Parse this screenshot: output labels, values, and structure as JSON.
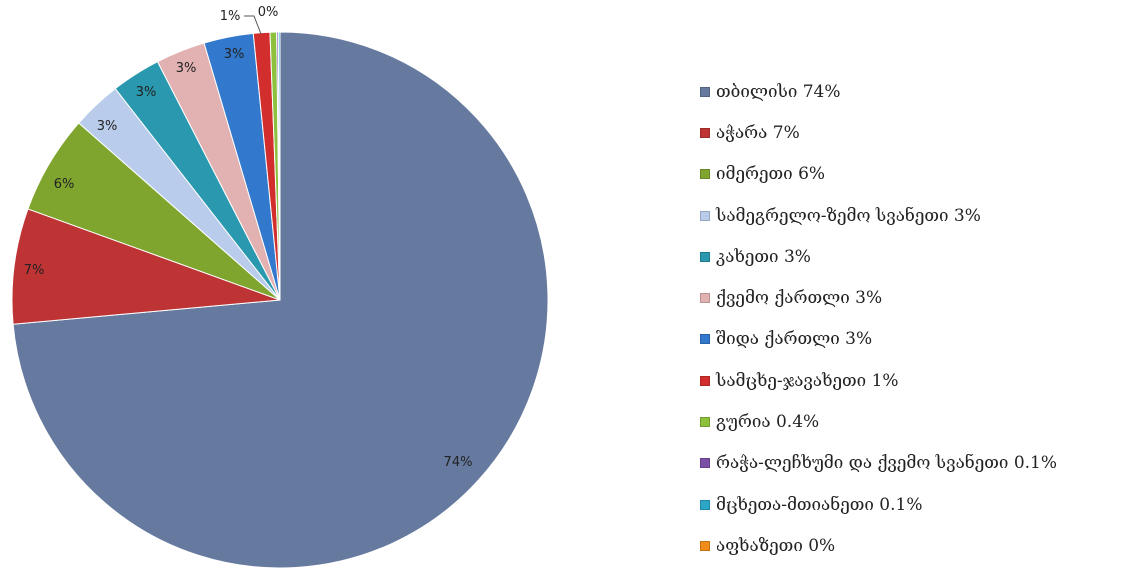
{
  "chart_data": {
    "type": "pie",
    "title": "",
    "slices": [
      {
        "label": "თბილისი",
        "legend": "თბილისი 74%",
        "value": 74,
        "data_label": "74%",
        "color": "#667A9F"
      },
      {
        "label": "აჭარა",
        "legend": "აჭარა 7%",
        "value": 7,
        "data_label": "7%",
        "color": "#BE3434"
      },
      {
        "label": "იმერეთი",
        "legend": "იმერეთი 6%",
        "value": 6,
        "data_label": "6%",
        "color": "#7FA52F"
      },
      {
        "label": "სამეგრელო-ზემო სვანეთი",
        "legend": "სამეგრელო-ზემო სვანეთი 3%",
        "value": 3,
        "data_label": "3%",
        "color": "#B9CCEB"
      },
      {
        "label": "კახეთი",
        "legend": "კახეთი 3%",
        "value": 3,
        "data_label": "3%",
        "color": "#2A98AE"
      },
      {
        "label": "ქვემო ქართლი",
        "legend": "ქვემო ქართლი 3%",
        "value": 3,
        "data_label": "3%",
        "color": "#E2B1B1"
      },
      {
        "label": "შიდა ქართლი",
        "legend": "შიდა ქართლი 3%",
        "value": 3,
        "data_label": "3%",
        "color": "#3278CC"
      },
      {
        "label": "სამცხე-ჯავახეთი",
        "legend": "სამცხე-ჯავახეთი 1%",
        "value": 1,
        "data_label": "1%",
        "color": "#D32E2E"
      },
      {
        "label": "გურია",
        "legend": "გურია 0.4%",
        "value": 0.4,
        "data_label": "0%",
        "color": "#8DC03C"
      },
      {
        "label": "რაჭა-ლეჩხუმი და ქვემო სვანეთი",
        "legend": "რაჭა-ლეჩხუმი და ქვემო სვანეთი 0.1%",
        "value": 0.1,
        "data_label": "",
        "color": "#7B4FA8"
      },
      {
        "label": "მცხეთა-მთიანეთი",
        "legend": "მცხეთა-მთიანეთი  0.1%",
        "value": 0.1,
        "data_label": "",
        "color": "#2BA6C7"
      },
      {
        "label": "აფხაზეთი",
        "legend": "აფხაზეთი 0%",
        "value": 0,
        "data_label": "",
        "color": "#F08C1A"
      }
    ],
    "legend_position": "right"
  }
}
